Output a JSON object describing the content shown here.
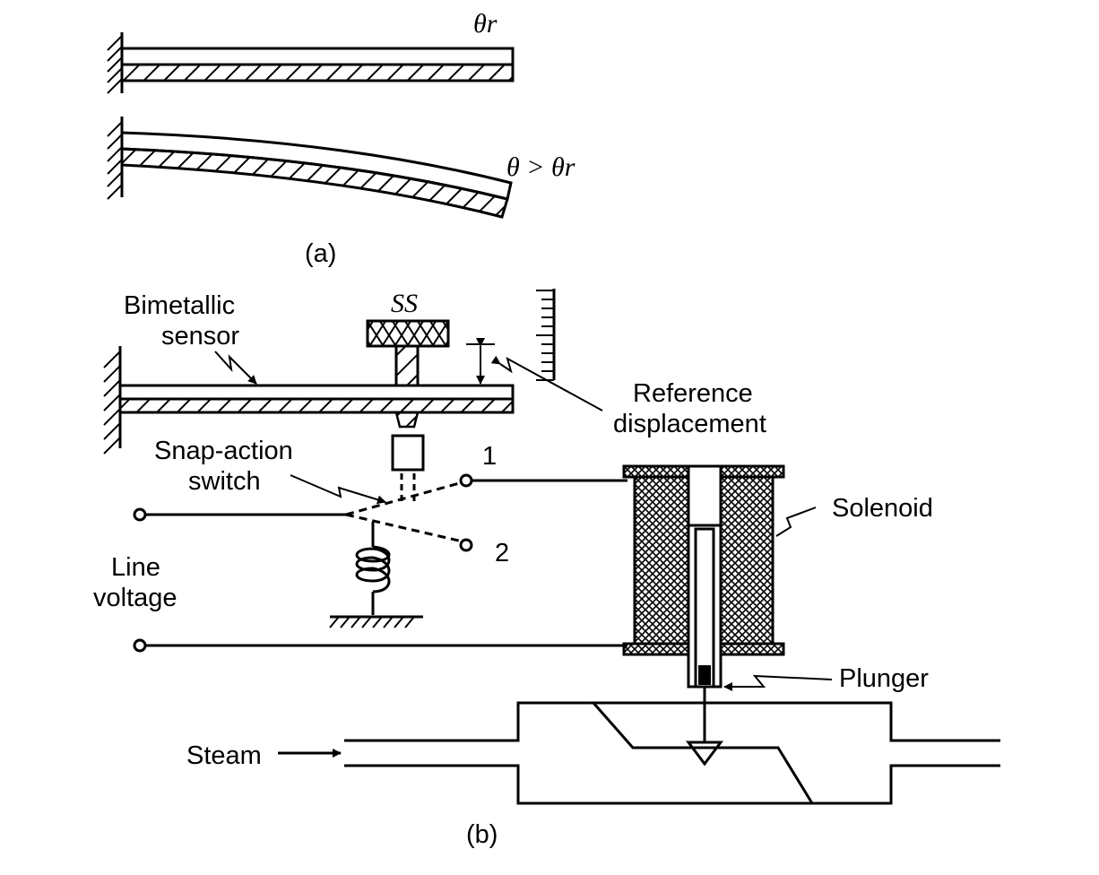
{
  "part_a": {
    "theta_ref": "θr",
    "theta_gt": "θ > θr",
    "caption": "(a)"
  },
  "part_b": {
    "ss": "SS",
    "bimetallic_line1": "Bimetallic",
    "bimetallic_line2": "sensor",
    "ref_line1": "Reference",
    "ref_line2": "displacement",
    "snap_line1": "Snap-action",
    "snap_line2": "switch",
    "contact_1": "1",
    "contact_2": "2",
    "line_line1": "Line",
    "line_line2": "voltage",
    "solenoid": "Solenoid",
    "plunger": "Plunger",
    "steam": "Steam",
    "caption": "(b)"
  }
}
